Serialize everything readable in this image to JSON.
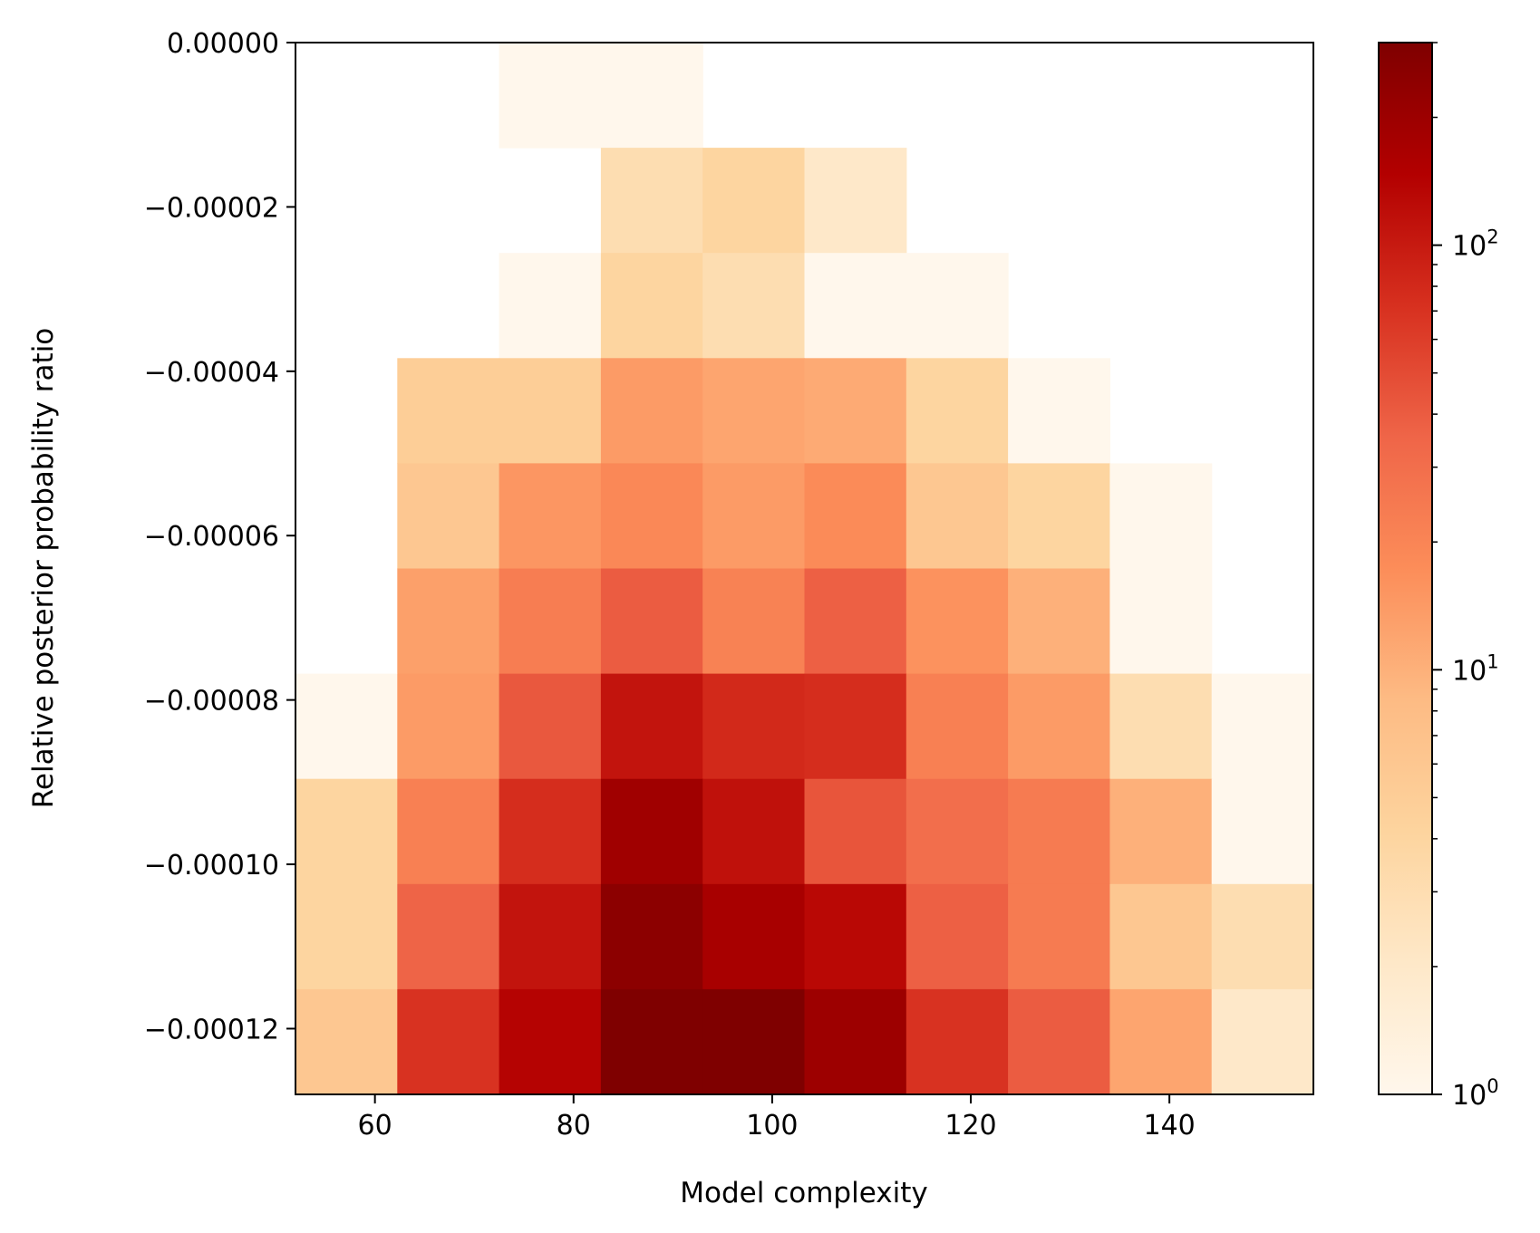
{
  "chart_data": {
    "type": "heatmap",
    "title": "",
    "xlabel": "Model complexity",
    "ylabel": "Relative posterior probability ratio",
    "xlim": [
      52.0,
      154.5
    ],
    "ylim": [
      -0.000128,
      0.0
    ],
    "x_bin_edges": [
      52.0,
      62.25,
      72.5,
      82.75,
      93.0,
      103.25,
      113.5,
      123.75,
      134.0,
      144.25,
      154.5
    ],
    "y_bin_edges": [
      -0.000128,
      -0.0001152,
      -0.0001024,
      -8.96e-05,
      -7.68e-05,
      -6.4e-05,
      -5.12e-05,
      -3.84e-05,
      -2.56e-05,
      -1.28e-05,
      0.0
    ],
    "x_ticks": [
      60,
      80,
      100,
      120,
      140
    ],
    "x_tick_labels": [
      "60",
      "80",
      "100",
      "120",
      "140"
    ],
    "y_ticks": [
      0.0,
      -2e-05,
      -4e-05,
      -6e-05,
      -8e-05,
      -0.0001,
      -0.00012
    ],
    "y_tick_labels": [
      "0.00000",
      "−0.00002",
      "−0.00004",
      "−0.00006",
      "−0.00008",
      "−0.00010",
      "−0.00012"
    ],
    "counts_top_to_bottom": [
      [
        0,
        0,
        1,
        1,
        0,
        0,
        0,
        0,
        0,
        0
      ],
      [
        0,
        0,
        0,
        3,
        4,
        2,
        0,
        0,
        0,
        0
      ],
      [
        0,
        0,
        1,
        4,
        3,
        1,
        1,
        0,
        0,
        0
      ],
      [
        0,
        5,
        5,
        14,
        12,
        11,
        4,
        1,
        0,
        0
      ],
      [
        0,
        6,
        15,
        19,
        14,
        18,
        6,
        4,
        1,
        0
      ],
      [
        0,
        13,
        23,
        40,
        21,
        38,
        16,
        10,
        1,
        0
      ],
      [
        1,
        14,
        42,
        110,
        80,
        75,
        22,
        14,
        3,
        1
      ],
      [
        4,
        22,
        75,
        190,
        115,
        44,
        30,
        24,
        10,
        1
      ],
      [
        4,
        36,
        110,
        250,
        170,
        130,
        38,
        24,
        6,
        3
      ],
      [
        6,
        70,
        140,
        300,
        300,
        200,
        70,
        40,
        12,
        2
      ]
    ],
    "colormap": "OrRd",
    "colorbar": {
      "scale": "log",
      "range": [
        1,
        300
      ],
      "tick_values": [
        1,
        10,
        100
      ],
      "tick_labels": [
        "10",
        "10",
        "10"
      ],
      "tick_exponents": [
        "0",
        "1",
        "2"
      ]
    },
    "grid": false,
    "legend": "none"
  }
}
